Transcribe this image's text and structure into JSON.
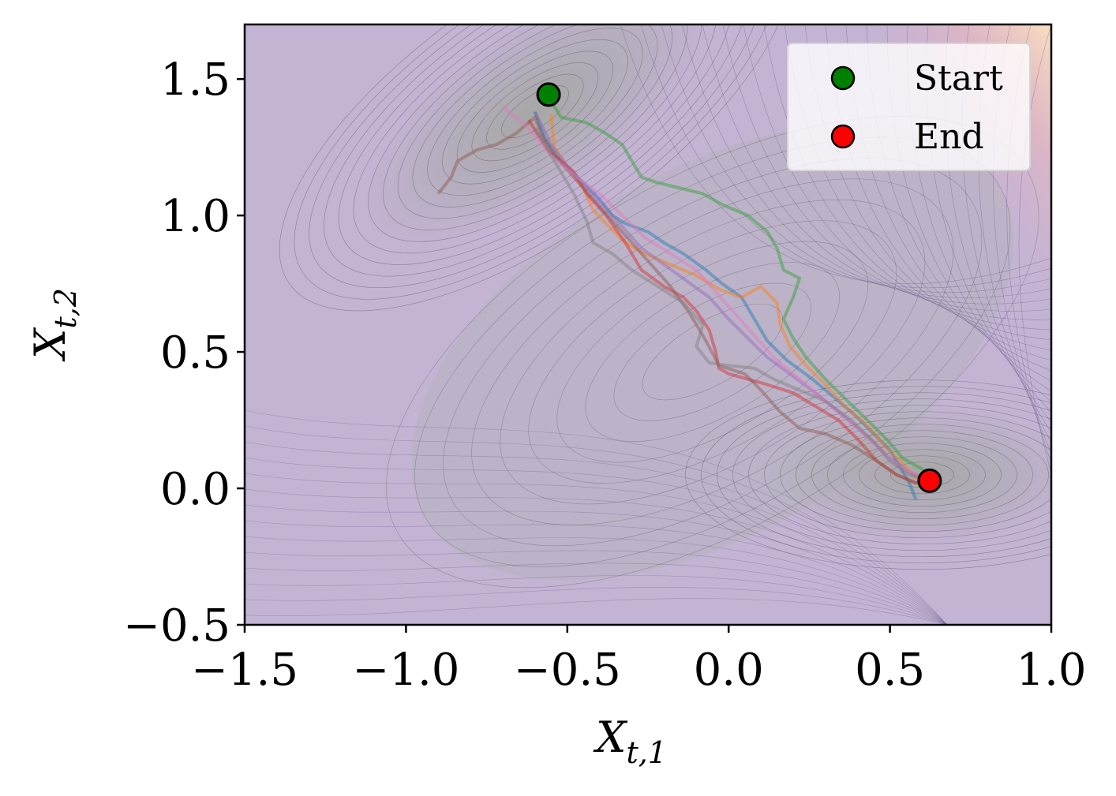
{
  "chart_data": {
    "type": "line",
    "xlabel": "X_{t,1}",
    "ylabel": "X_{t,2}",
    "xlim": [
      -1.5,
      1.0
    ],
    "ylim": [
      -0.5,
      1.7
    ],
    "xticks": [
      -1.5,
      -1.0,
      -0.5,
      0.0,
      0.5,
      1.0
    ],
    "yticks": [
      -0.5,
      0.0,
      0.5,
      1.0,
      1.5
    ],
    "xtick_labels": [
      "−1.5",
      "−1.0",
      "−0.5",
      "0.0",
      "0.5",
      "1.0"
    ],
    "ytick_labels": [
      "−0.5",
      "0.0",
      "0.5",
      "1.0",
      "1.5"
    ],
    "grid": false,
    "legend_position": "top-right",
    "background": "contour plot of a potential energy surface (Mueller-type) with a minimum near (-0.56, 1.44) and a minimum near (0.62, 0.03), shaded grey to purple",
    "colors": {
      "start": "#008000",
      "end": "#ff0000",
      "low_energy": "#a6a8a6",
      "mid_energy": "#c3b5d8",
      "high_energy": "#f4c2a0"
    },
    "markers": [
      {
        "label": "Start",
        "x": -0.558,
        "y": 1.443,
        "color": "#008000"
      },
      {
        "label": "End",
        "x": 0.623,
        "y": 0.028,
        "color": "#ff0000"
      }
    ],
    "series": [
      {
        "color": "#2ca02c",
        "values": [
          [
            -0.56,
            1.44
          ],
          [
            -0.52,
            1.36
          ],
          [
            -0.44,
            1.34
          ],
          [
            -0.38,
            1.3
          ],
          [
            -0.33,
            1.26
          ],
          [
            -0.3,
            1.2
          ],
          [
            -0.27,
            1.14
          ],
          [
            -0.22,
            1.12
          ],
          [
            -0.15,
            1.1
          ],
          [
            -0.08,
            1.08
          ],
          [
            -0.02,
            1.04
          ],
          [
            0.06,
            1.0
          ],
          [
            0.12,
            0.94
          ],
          [
            0.15,
            0.88
          ],
          [
            0.17,
            0.8
          ],
          [
            0.22,
            0.77
          ],
          [
            0.2,
            0.7
          ],
          [
            0.17,
            0.62
          ],
          [
            0.2,
            0.55
          ],
          [
            0.24,
            0.48
          ],
          [
            0.3,
            0.4
          ],
          [
            0.36,
            0.33
          ],
          [
            0.43,
            0.25
          ],
          [
            0.49,
            0.18
          ],
          [
            0.54,
            0.11
          ],
          [
            0.6,
            0.07
          ],
          [
            0.63,
            0.03
          ]
        ]
      },
      {
        "color": "#1f77b4",
        "values": [
          [
            -0.6,
            1.38
          ],
          [
            -0.57,
            1.28
          ],
          [
            -0.52,
            1.2
          ],
          [
            -0.45,
            1.12
          ],
          [
            -0.4,
            1.06
          ],
          [
            -0.36,
            1.0
          ],
          [
            -0.32,
            0.97
          ],
          [
            -0.25,
            0.94
          ],
          [
            -0.2,
            0.9
          ],
          [
            -0.14,
            0.86
          ],
          [
            -0.07,
            0.8
          ],
          [
            -0.02,
            0.75
          ],
          [
            0.04,
            0.7
          ],
          [
            0.08,
            0.62
          ],
          [
            0.12,
            0.54
          ],
          [
            0.18,
            0.47
          ],
          [
            0.26,
            0.4
          ],
          [
            0.33,
            0.33
          ],
          [
            0.39,
            0.27
          ],
          [
            0.45,
            0.2
          ],
          [
            0.5,
            0.14
          ],
          [
            0.53,
            0.08
          ],
          [
            0.56,
            0.02
          ],
          [
            0.58,
            -0.04
          ]
        ]
      },
      {
        "color": "#ff7f0e",
        "values": [
          [
            -0.55,
            1.37
          ],
          [
            -0.54,
            1.25
          ],
          [
            -0.5,
            1.18
          ],
          [
            -0.45,
            1.1
          ],
          [
            -0.42,
            1.02
          ],
          [
            -0.38,
            0.97
          ],
          [
            -0.32,
            0.9
          ],
          [
            -0.26,
            0.86
          ],
          [
            -0.18,
            0.82
          ],
          [
            -0.1,
            0.78
          ],
          [
            -0.03,
            0.73
          ],
          [
            0.04,
            0.7
          ],
          [
            0.1,
            0.74
          ],
          [
            0.15,
            0.68
          ],
          [
            0.16,
            0.6
          ],
          [
            0.19,
            0.52
          ],
          [
            0.24,
            0.45
          ],
          [
            0.3,
            0.38
          ],
          [
            0.36,
            0.3
          ],
          [
            0.43,
            0.23
          ],
          [
            0.48,
            0.16
          ],
          [
            0.53,
            0.1
          ],
          [
            0.58,
            0.04
          ],
          [
            0.62,
            0.03
          ]
        ]
      },
      {
        "color": "#d62728",
        "values": [
          [
            -0.62,
            1.35
          ],
          [
            -0.56,
            1.24
          ],
          [
            -0.48,
            1.16
          ],
          [
            -0.44,
            1.08
          ],
          [
            -0.38,
            1.0
          ],
          [
            -0.32,
            0.9
          ],
          [
            -0.27,
            0.8
          ],
          [
            -0.2,
            0.74
          ],
          [
            -0.14,
            0.7
          ],
          [
            -0.1,
            0.65
          ],
          [
            -0.06,
            0.58
          ],
          [
            -0.04,
            0.5
          ],
          [
            -0.03,
            0.44
          ],
          [
            0.0,
            0.42
          ],
          [
            0.06,
            0.4
          ],
          [
            0.12,
            0.38
          ],
          [
            0.2,
            0.35
          ],
          [
            0.27,
            0.3
          ],
          [
            0.34,
            0.25
          ],
          [
            0.4,
            0.18
          ],
          [
            0.46,
            0.1
          ],
          [
            0.52,
            0.05
          ],
          [
            0.58,
            0.02
          ],
          [
            0.63,
            0.03
          ]
        ]
      },
      {
        "color": "#9467bd",
        "values": [
          [
            -0.6,
            1.38
          ],
          [
            -0.55,
            1.26
          ],
          [
            -0.48,
            1.15
          ],
          [
            -0.4,
            1.05
          ],
          [
            -0.33,
            0.96
          ],
          [
            -0.27,
            0.88
          ],
          [
            -0.2,
            0.82
          ],
          [
            -0.13,
            0.76
          ],
          [
            -0.06,
            0.7
          ],
          [
            0.0,
            0.62
          ],
          [
            0.06,
            0.55
          ],
          [
            0.12,
            0.48
          ],
          [
            0.2,
            0.41
          ],
          [
            0.28,
            0.34
          ],
          [
            0.36,
            0.26
          ],
          [
            0.44,
            0.18
          ],
          [
            0.5,
            0.11
          ],
          [
            0.56,
            0.06
          ],
          [
            0.62,
            0.03
          ]
        ]
      },
      {
        "color": "#8c564b",
        "values": [
          [
            -0.9,
            1.08
          ],
          [
            -0.86,
            1.14
          ],
          [
            -0.84,
            1.2
          ],
          [
            -0.78,
            1.24
          ],
          [
            -0.72,
            1.26
          ],
          [
            -0.66,
            1.3
          ],
          [
            -0.6,
            1.36
          ],
          [
            -0.58,
            1.3
          ],
          [
            -0.54,
            1.22
          ],
          [
            -0.48,
            1.14
          ],
          [
            -0.42,
            1.06
          ],
          [
            -0.36,
            0.98
          ],
          [
            -0.3,
            0.9
          ],
          [
            -0.24,
            0.82
          ],
          [
            -0.18,
            0.74
          ],
          [
            -0.12,
            0.64
          ],
          [
            -0.07,
            0.54
          ],
          [
            -0.03,
            0.45
          ],
          [
            0.05,
            0.42
          ],
          [
            0.1,
            0.36
          ],
          [
            0.16,
            0.28
          ],
          [
            0.22,
            0.22
          ],
          [
            0.3,
            0.2
          ],
          [
            0.38,
            0.16
          ],
          [
            0.46,
            0.1
          ],
          [
            0.52,
            0.05
          ],
          [
            0.58,
            0.02
          ],
          [
            0.62,
            0.03
          ]
        ]
      },
      {
        "color": "#e377c2",
        "values": [
          [
            -0.7,
            1.4
          ],
          [
            -0.62,
            1.32
          ],
          [
            -0.55,
            1.22
          ],
          [
            -0.47,
            1.14
          ],
          [
            -0.4,
            1.08
          ],
          [
            -0.33,
            1.0
          ],
          [
            -0.26,
            0.92
          ],
          [
            -0.18,
            0.86
          ],
          [
            -0.1,
            0.8
          ],
          [
            -0.04,
            0.72
          ],
          [
            0.02,
            0.64
          ],
          [
            0.08,
            0.56
          ],
          [
            0.14,
            0.48
          ],
          [
            0.2,
            0.42
          ],
          [
            0.26,
            0.36
          ],
          [
            0.32,
            0.3
          ],
          [
            0.4,
            0.22
          ],
          [
            0.47,
            0.14
          ],
          [
            0.53,
            0.08
          ],
          [
            0.6,
            0.04
          ],
          [
            0.65,
            0.02
          ]
        ]
      },
      {
        "color": "#7f7f7f",
        "values": [
          [
            -0.6,
            1.32
          ],
          [
            -0.54,
            1.2
          ],
          [
            -0.48,
            1.08
          ],
          [
            -0.44,
            0.98
          ],
          [
            -0.42,
            0.9
          ],
          [
            -0.36,
            0.86
          ],
          [
            -0.3,
            0.8
          ],
          [
            -0.22,
            0.74
          ],
          [
            -0.14,
            0.68
          ],
          [
            -0.08,
            0.6
          ],
          [
            -0.1,
            0.52
          ],
          [
            -0.06,
            0.46
          ],
          [
            0.0,
            0.45
          ],
          [
            0.08,
            0.44
          ],
          [
            0.14,
            0.4
          ],
          [
            0.22,
            0.36
          ],
          [
            0.3,
            0.32
          ],
          [
            0.38,
            0.25
          ],
          [
            0.45,
            0.17
          ],
          [
            0.5,
            0.1
          ],
          [
            0.56,
            0.05
          ],
          [
            0.62,
            0.03
          ]
        ]
      }
    ],
    "legend": [
      {
        "label": "Start",
        "color": "#008000"
      },
      {
        "label": "End",
        "color": "#ff0000"
      }
    ]
  }
}
